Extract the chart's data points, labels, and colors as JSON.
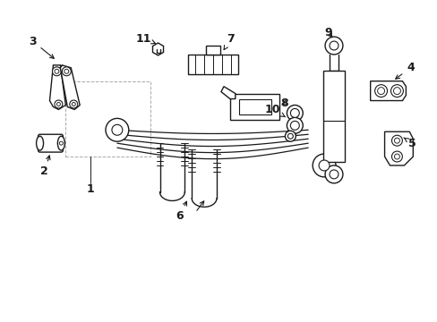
{
  "background_color": "#ffffff",
  "line_color": "#1a1a1a",
  "line_width": 1.0,
  "fig_width": 4.89,
  "fig_height": 3.6,
  "dpi": 100,
  "font_size": 9
}
